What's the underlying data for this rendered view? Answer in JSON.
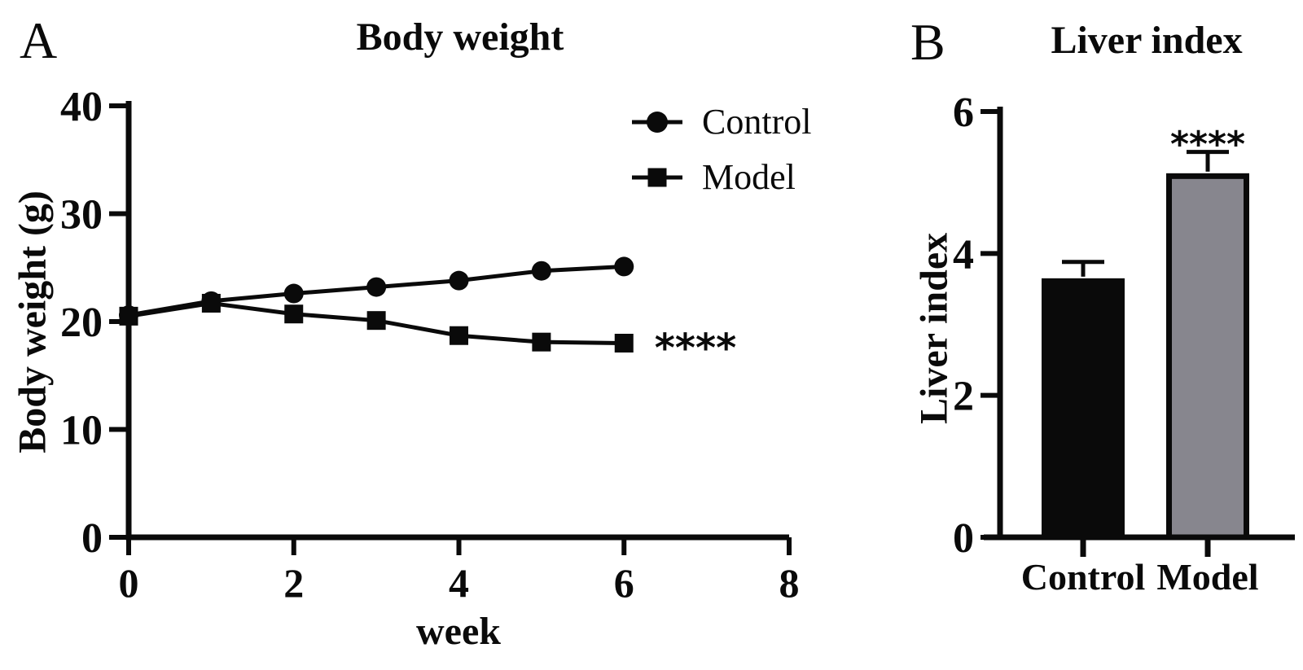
{
  "panels": {
    "a": {
      "label": "A"
    },
    "b": {
      "label": "B"
    }
  },
  "colors": {
    "ink": "#0a0a0a",
    "model_bar_fill": "#87868e",
    "background": "#ffffff"
  },
  "chart_data": [
    {
      "type": "line",
      "panel": "A",
      "title": "Body weight",
      "xlabel": "week",
      "ylabel": "Body weight (g)",
      "xlim": [
        0,
        8
      ],
      "ylim": [
        0,
        40
      ],
      "x_ticks": [
        0,
        2,
        4,
        6,
        8
      ],
      "y_ticks": [
        0,
        10,
        20,
        30,
        40
      ],
      "grid": false,
      "legend_position": "top-right",
      "x": [
        0,
        1,
        2,
        3,
        4,
        5,
        6
      ],
      "series": [
        {
          "name": "Control",
          "marker": "circle",
          "color": "#0a0a0a",
          "values": [
            20.6,
            21.9,
            22.6,
            23.2,
            23.8,
            24.7,
            25.1
          ]
        },
        {
          "name": "Model",
          "marker": "square",
          "color": "#0a0a0a",
          "values": [
            20.5,
            21.7,
            20.7,
            20.1,
            18.7,
            18.1,
            18.0
          ]
        }
      ],
      "annotation": {
        "text": "****",
        "x": 6.9,
        "y": 18
      }
    },
    {
      "type": "bar",
      "panel": "B",
      "title": "Liver index",
      "xlabel": "",
      "ylabel": "Liver index",
      "ylim": [
        0,
        6
      ],
      "y_ticks": [
        0,
        2,
        4,
        6
      ],
      "grid": false,
      "categories": [
        "Control",
        "Model"
      ],
      "values": [
        3.65,
        5.13
      ],
      "errors": [
        0.23,
        0.3
      ],
      "bar_colors": [
        "#0a0a0a",
        "#87868e"
      ],
      "annotation": {
        "text": "****",
        "category": "Model"
      }
    }
  ]
}
